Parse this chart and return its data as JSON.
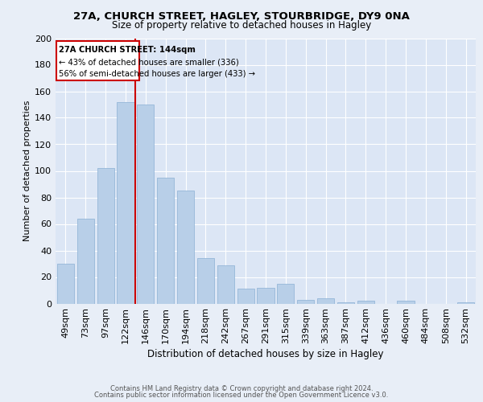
{
  "title1": "27A, CHURCH STREET, HAGLEY, STOURBRIDGE, DY9 0NA",
  "title2": "Size of property relative to detached houses in Hagley",
  "xlabel": "Distribution of detached houses by size in Hagley",
  "ylabel": "Number of detached properties",
  "categories": [
    "49sqm",
    "73sqm",
    "97sqm",
    "122sqm",
    "146sqm",
    "170sqm",
    "194sqm",
    "218sqm",
    "242sqm",
    "267sqm",
    "291sqm",
    "315sqm",
    "339sqm",
    "363sqm",
    "387sqm",
    "412sqm",
    "436sqm",
    "460sqm",
    "484sqm",
    "508sqm",
    "532sqm"
  ],
  "values": [
    30,
    64,
    102,
    152,
    150,
    95,
    85,
    34,
    29,
    11,
    12,
    15,
    3,
    4,
    1,
    2,
    0,
    2,
    0,
    0,
    1
  ],
  "bar_color": "#b8cfe8",
  "bar_edge_color": "#8aafd4",
  "vline_color": "#cc0000",
  "annotation_title": "27A CHURCH STREET: 144sqm",
  "annotation_line1": "← 43% of detached houses are smaller (336)",
  "annotation_line2": "56% of semi-detached houses are larger (433) →",
  "annotation_box_color": "#cc0000",
  "annotation_bg": "#ffffff",
  "ylim": [
    0,
    200
  ],
  "yticks": [
    0,
    20,
    40,
    60,
    80,
    100,
    120,
    140,
    160,
    180,
    200
  ],
  "bg_color": "#e8eef7",
  "plot_bg": "#dce6f5",
  "footer1": "Contains HM Land Registry data © Crown copyright and database right 2024.",
  "footer2": "Contains public sector information licensed under the Open Government Licence v3.0."
}
